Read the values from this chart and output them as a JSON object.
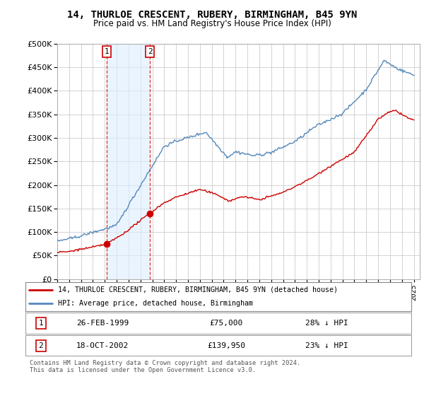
{
  "title": "14, THURLOE CRESCENT, RUBERY, BIRMINGHAM, B45 9YN",
  "subtitle": "Price paid vs. HM Land Registry's House Price Index (HPI)",
  "legend_line1": "14, THURLOE CRESCENT, RUBERY, BIRMINGHAM, B45 9YN (detached house)",
  "legend_line2": "HPI: Average price, detached house, Birmingham",
  "footnote": "Contains HM Land Registry data © Crown copyright and database right 2024.\nThis data is licensed under the Open Government Licence v3.0.",
  "sale1_label": "1",
  "sale1_date": "26-FEB-1999",
  "sale1_price": "£75,000",
  "sale1_hpi": "28% ↓ HPI",
  "sale1_year": 1999.15,
  "sale1_value": 75000,
  "sale2_label": "2",
  "sale2_date": "18-OCT-2002",
  "sale2_price": "£139,950",
  "sale2_hpi": "23% ↓ HPI",
  "sale2_year": 2002.8,
  "sale2_value": 139950,
  "red_color": "#cc0000",
  "blue_color": "#5588bb",
  "blue_fill": "#ddeeff",
  "bg_color": "#ffffff",
  "grid_color": "#cccccc",
  "ylim": [
    0,
    500000
  ],
  "yticks": [
    0,
    50000,
    100000,
    150000,
    200000,
    250000,
    300000,
    350000,
    400000,
    450000,
    500000
  ],
  "xmin": 1995,
  "xmax": 2025.5
}
